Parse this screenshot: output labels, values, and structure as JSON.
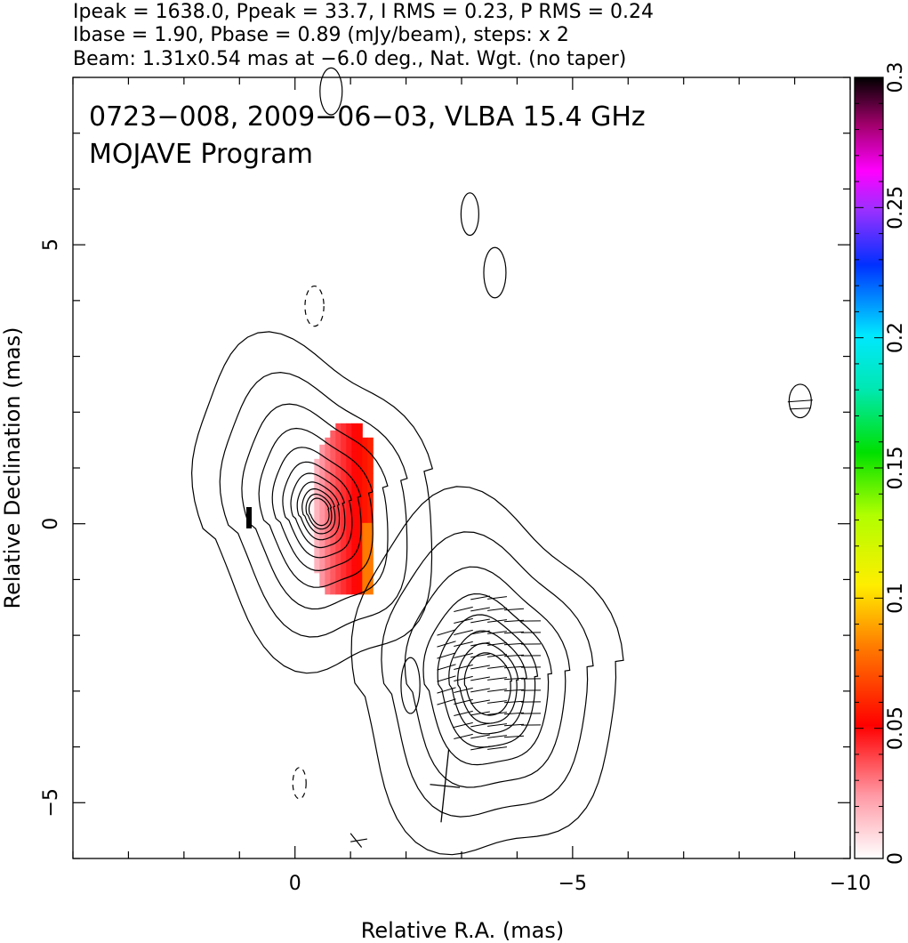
{
  "header": {
    "line1": "Ipeak = 1638.0, Ppeak = 33.7, I RMS = 0.23, P RMS = 0.24",
    "line2": "Ibase = 1.90, Pbase = 0.89 (mJy/beam), steps: x 2",
    "line3": "Beam: 1.31x0.54 mas at −6.0 deg., Nat. Wgt. (no taper)"
  },
  "plot_labels": {
    "title": "0723−008, 2009−06−03, VLBA 15.4 GHz",
    "subtitle": "MOJAVE Program"
  },
  "chart_data": {
    "type": "heatmap",
    "xlabel": "Relative R.A. (mas)",
    "ylabel": "Relative Declination (mas)",
    "xlim": [
      4,
      -10
    ],
    "ylim": [
      -6,
      8
    ],
    "x_ticks": [
      {
        "value": 0,
        "label": "0"
      },
      {
        "value": -5,
        "label": "−5"
      },
      {
        "value": -10,
        "label": "−10"
      }
    ],
    "y_ticks": [
      {
        "value": -5,
        "label": "−5"
      },
      {
        "value": 0,
        "label": "0"
      },
      {
        "value": 5,
        "label": "5"
      }
    ],
    "colorbar": {
      "range": [
        0,
        0.3
      ],
      "ticks": [
        {
          "value": 0,
          "label": "0"
        },
        {
          "value": 0.05,
          "label": "0.05"
        },
        {
          "value": 0.1,
          "label": "0.1"
        },
        {
          "value": 0.15,
          "label": "0.15"
        },
        {
          "value": 0.2,
          "label": "0.2"
        },
        {
          "value": 0.25,
          "label": "0.25"
        },
        {
          "value": 0.3,
          "label": "0.3"
        }
      ]
    },
    "contours": {
      "sources": [
        {
          "name": "core",
          "cx": -0.35,
          "cy": 0.3,
          "rx_max": 2.0,
          "ry_max": 3.0,
          "rotation_deg": -18,
          "levels": 11,
          "skew": 0.25
        },
        {
          "name": "jet",
          "cx": -3.4,
          "cy": -2.8,
          "rx_max": 2.3,
          "ry_max": 3.2,
          "rotation_deg": -8,
          "levels": 8,
          "skew": 0.2
        }
      ],
      "isolated": [
        {
          "cx": -0.65,
          "cy": 7.75,
          "rx": 0.2,
          "ry": 0.42,
          "dashed": false
        },
        {
          "cx": -3.15,
          "cy": 5.55,
          "rx": 0.16,
          "ry": 0.38,
          "dashed": false
        },
        {
          "cx": -3.6,
          "cy": 4.5,
          "rx": 0.2,
          "ry": 0.45,
          "dashed": false
        },
        {
          "cx": -0.35,
          "cy": 3.9,
          "rx": 0.17,
          "ry": 0.36,
          "dashed": true
        },
        {
          "cx": -9.1,
          "cy": 2.2,
          "rx": 0.2,
          "ry": 0.3,
          "dashed": false
        },
        {
          "cx": -2.08,
          "cy": -2.9,
          "rx": 0.17,
          "ry": 0.5,
          "dashed": false
        },
        {
          "cx": -0.08,
          "cy": -4.65,
          "rx": 0.12,
          "ry": 0.28,
          "dashed": true
        }
      ]
    },
    "polarization": {
      "region": {
        "x_min": -0.25,
        "x_max": -1.35,
        "y_min": -1.2,
        "y_max": 1.8
      },
      "values_note_peak": 0.06
    },
    "evpa_vectors_region": {
      "x_min": -2.6,
      "x_max": -4.5,
      "y_min": -4.1,
      "y_max": -1.2
    },
    "beam": {
      "x": -2.7,
      "y": -4.7,
      "major": 1.31,
      "minor": 0.54,
      "pa_deg": -6.0
    }
  }
}
